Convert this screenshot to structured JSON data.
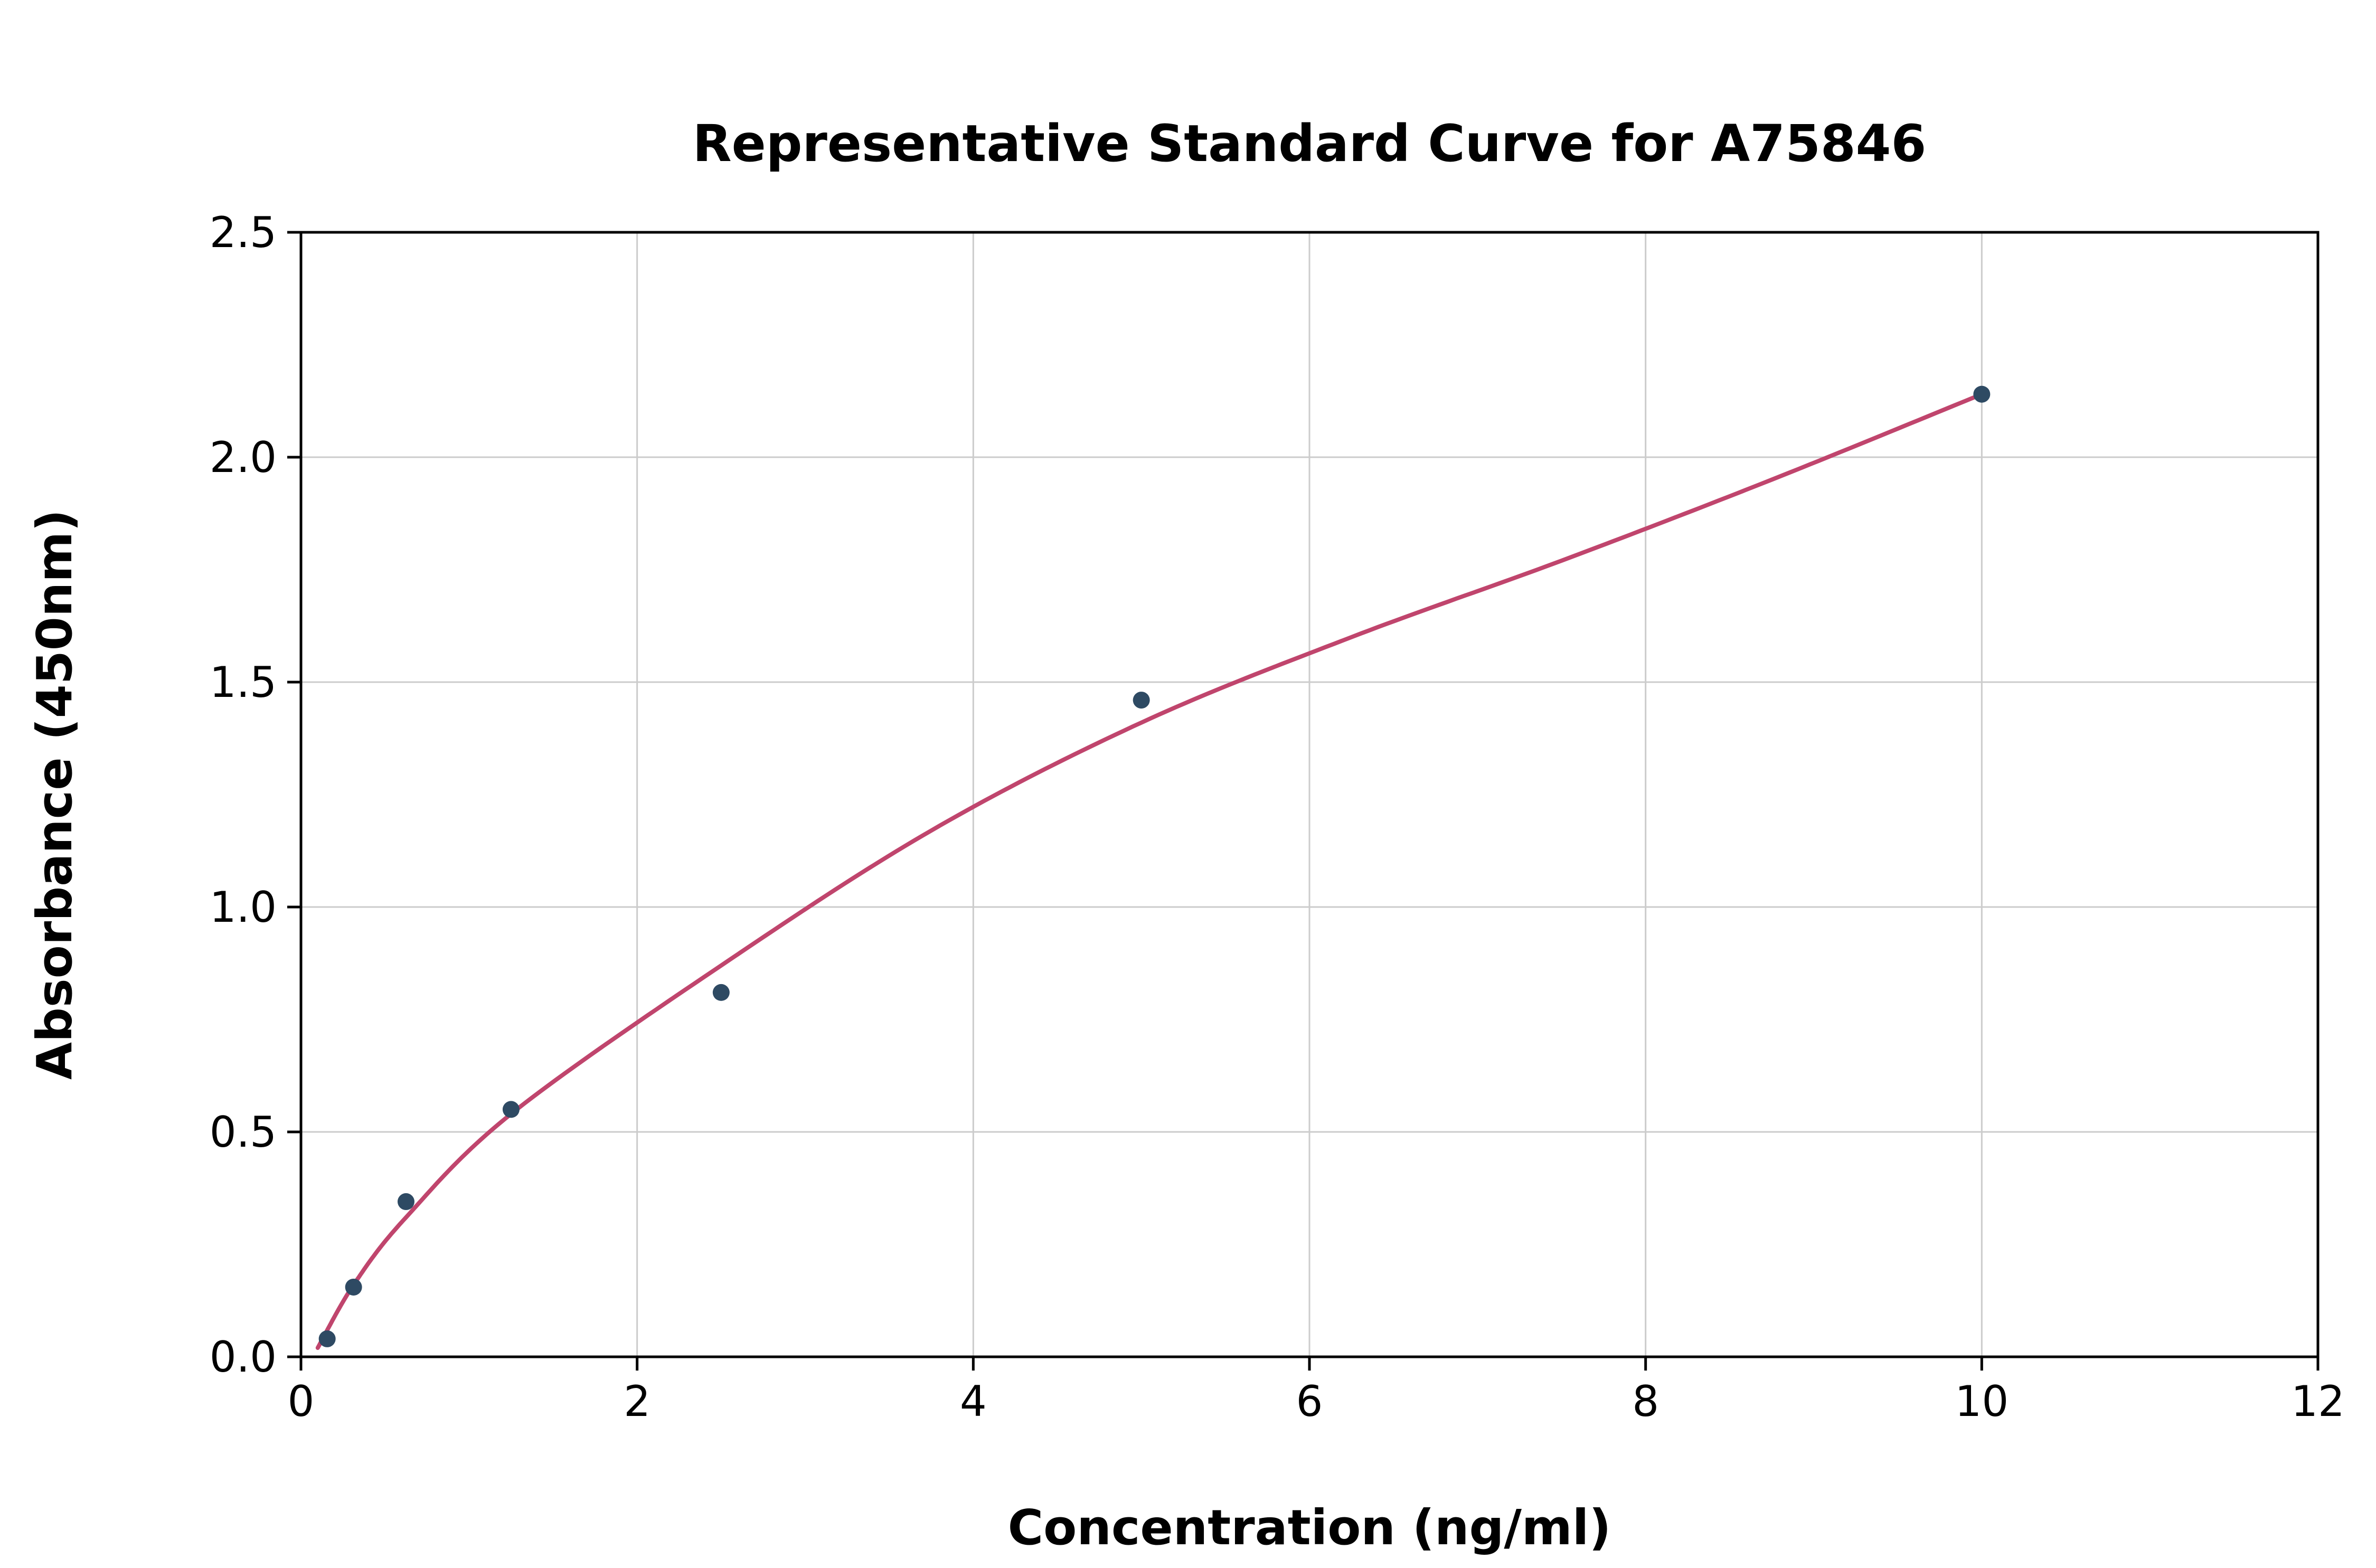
{
  "chart_data": {
    "type": "scatter",
    "title": "Representative Standard Curve for A75846",
    "xlabel": "Concentration (ng/ml)",
    "ylabel": "Absorbance (450nm)",
    "xlim": [
      0,
      12
    ],
    "ylim": [
      0,
      2.5
    ],
    "xticks": [
      0,
      2,
      4,
      6,
      8,
      10,
      12
    ],
    "xtick_labels": [
      "0",
      "2",
      "4",
      "6",
      "8",
      "10",
      "12"
    ],
    "yticks": [
      0,
      0.5,
      1.0,
      1.5,
      2.0,
      2.5
    ],
    "ytick_labels": [
      "0.0",
      "0.5",
      "1.0",
      "1.5",
      "2.0",
      "2.5"
    ],
    "grid": true,
    "legend": "none",
    "points": {
      "x": [
        0.156,
        0.313,
        0.625,
        1.25,
        2.5,
        5,
        10
      ],
      "y": [
        0.04,
        0.155,
        0.345,
        0.55,
        0.81,
        1.46,
        2.14
      ]
    },
    "fit_curve": [
      [
        0.1,
        0.02
      ],
      [
        0.313,
        0.16
      ],
      [
        0.625,
        0.31
      ],
      [
        1.25,
        0.54
      ],
      [
        2.5,
        0.87
      ],
      [
        3.75,
        1.17
      ],
      [
        5.0,
        1.41
      ],
      [
        6.25,
        1.6
      ],
      [
        7.5,
        1.77
      ],
      [
        8.75,
        1.95
      ],
      [
        10.0,
        2.14
      ]
    ],
    "colors": {
      "points": "#2e4a63",
      "curve": "#c0456d",
      "grid": "#cccccc",
      "axis": "#000000",
      "background": "#ffffff"
    }
  }
}
